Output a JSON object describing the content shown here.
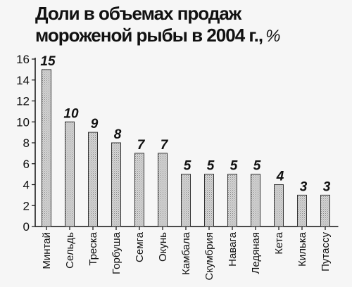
{
  "chart_data": {
    "type": "bar",
    "title": "Доли в объемах продаж мороженой рыбы в 2004 г.,",
    "title_line1": "Доли в объемах продаж",
    "title_line2": "мороженой рыбы в 2004 г.,",
    "unit": "%",
    "xlabel": "",
    "ylabel": "",
    "categories": [
      "Минтай",
      "Сельдь",
      "Треска",
      "Горбуша",
      "Семга",
      "Окунь",
      "Камбала",
      "Скумбрия",
      "Навага",
      "Ледяная",
      "Кета",
      "Килька",
      "Путассу"
    ],
    "values": [
      15,
      10,
      9,
      8,
      7,
      7,
      5,
      5,
      5,
      5,
      4,
      3,
      3
    ],
    "ylim": [
      0,
      16
    ],
    "yticks": [
      "0",
      "2",
      "4",
      "6",
      "8",
      "10",
      "12",
      "14",
      "16"
    ],
    "grid": false,
    "legend": "none",
    "bar_fill": "#cfcfcf",
    "bar_stroke": "#333333"
  }
}
